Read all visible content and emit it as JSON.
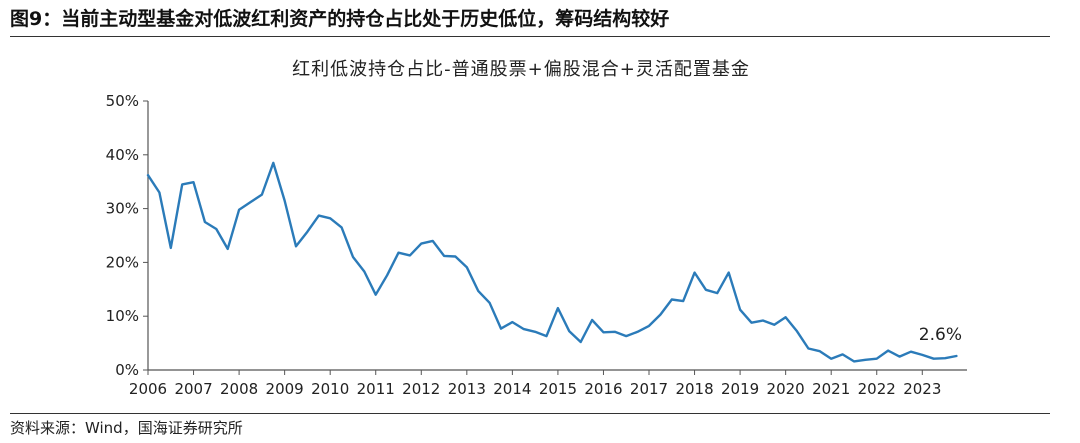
{
  "figure": {
    "title": "图9：当前主动型基金对低波红利资产的持仓占比处于历史低位，筹码结构较好",
    "source": "资料来源：Wind，国海证券研究所"
  },
  "chart_data": {
    "type": "line",
    "title": "红利低波持仓占比-普通股票+偏股混合+灵活配置基金",
    "xlabel": "",
    "ylabel": "",
    "xlim": [
      2006.0,
      2023.85
    ],
    "ylim": [
      0,
      50
    ],
    "y_ticks": [
      "0%",
      "10%",
      "20%",
      "30%",
      "40%",
      "50%"
    ],
    "x_ticks": [
      "2006",
      "2007",
      "2008",
      "2009",
      "2010",
      "2011",
      "2012",
      "2013",
      "2014",
      "2015",
      "2016",
      "2017",
      "2018",
      "2019",
      "2020",
      "2021",
      "2022",
      "2023"
    ],
    "grid": false,
    "legend": "none",
    "color": "#2b7bb9",
    "annotation": "2.6%",
    "series": [
      {
        "x": [
          2006.0,
          2006.25,
          2006.5,
          2006.75,
          2007.0,
          2007.25,
          2007.5,
          2007.75,
          2008.0,
          2008.25,
          2008.5,
          2008.75,
          2009.0,
          2009.25,
          2009.5,
          2009.75,
          2010.0,
          2010.25,
          2010.5,
          2010.75,
          2011.0,
          2011.25,
          2011.5,
          2011.75,
          2012.0,
          2012.25,
          2012.5,
          2012.75,
          2013.0,
          2013.25,
          2013.5,
          2013.75,
          2014.0,
          2014.25,
          2014.5,
          2014.75,
          2015.0,
          2015.25,
          2015.5,
          2015.75,
          2016.0,
          2016.25,
          2016.5,
          2016.75,
          2017.0,
          2017.25,
          2017.5,
          2017.75,
          2018.0,
          2018.25,
          2018.5,
          2018.75,
          2019.0,
          2019.25,
          2019.5,
          2019.75,
          2020.0,
          2020.25,
          2020.5,
          2020.75,
          2021.0,
          2021.25,
          2021.5,
          2021.75,
          2022.0,
          2022.25,
          2022.5,
          2022.75,
          2023.0,
          2023.25,
          2023.5,
          2023.75
        ],
        "values": [
          36.2,
          33.0,
          22.7,
          34.5,
          34.9,
          27.5,
          26.2,
          22.5,
          29.8,
          31.2,
          32.6,
          38.5,
          31.5,
          23.0,
          25.7,
          28.7,
          28.2,
          26.5,
          21.0,
          18.3,
          14.0,
          17.6,
          21.8,
          21.3,
          23.5,
          24.0,
          21.2,
          21.1,
          19.1,
          14.7,
          12.5,
          7.7,
          8.9,
          7.6,
          7.1,
          6.3,
          11.5,
          7.2,
          5.2,
          9.3,
          7.0,
          7.1,
          6.3,
          7.1,
          8.2,
          10.3,
          13.1,
          12.8,
          18.1,
          14.9,
          14.3,
          18.1,
          11.2,
          8.8,
          9.2,
          8.4,
          9.8,
          7.2,
          4.0,
          3.5,
          2.1,
          2.9,
          1.6,
          1.9,
          2.1,
          3.6,
          2.5,
          3.4,
          2.8,
          2.1,
          2.2,
          2.6
        ]
      }
    ]
  }
}
